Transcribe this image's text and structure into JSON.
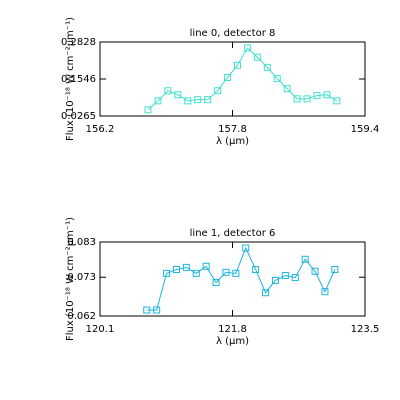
{
  "chart_data": [
    {
      "type": "line",
      "title": "line 0, detector 8",
      "xlabel": "λ (μm)",
      "ylabel": "Flux (10⁻¹⁸ W cm⁻²μm⁻¹)",
      "x": [
        156.78,
        156.9,
        157.02,
        157.14,
        157.26,
        157.38,
        157.5,
        157.62,
        157.74,
        157.86,
        157.98,
        158.1,
        158.22,
        158.34,
        158.46,
        158.58,
        158.7,
        158.82,
        158.94,
        159.06
      ],
      "series": [
        {
          "color": "#40e0d0",
          "values": [
            0.048,
            0.079,
            0.114,
            0.1,
            0.079,
            0.083,
            0.083,
            0.114,
            0.16,
            0.202,
            0.262,
            0.23,
            0.195,
            0.156,
            0.121,
            0.086,
            0.086,
            0.097,
            0.1,
            0.079
          ]
        }
      ],
      "xlim": [
        156.2,
        159.4
      ],
      "xticks": [
        156.2,
        157.8,
        159.4
      ],
      "ylim": [
        0.0265,
        0.2828
      ],
      "yticks": [
        0.0265,
        0.1546,
        0.2828
      ]
    },
    {
      "type": "line",
      "title": "line 1, detector 6",
      "xlabel": "λ (μm)",
      "ylabel": "Flux (10⁻¹⁸ W cm⁻²μm⁻¹)",
      "x": [
        120.7,
        120.827,
        120.954,
        121.081,
        121.208,
        121.335,
        121.462,
        121.589,
        121.716,
        121.843,
        121.97,
        122.097,
        122.224,
        122.351,
        122.478,
        122.605,
        122.732,
        122.859,
        122.986,
        123.113
      ],
      "series": [
        {
          "color": "#1cb5e0",
          "values": [
            0.0637,
            0.0637,
            0.0741,
            0.0752,
            0.0758,
            0.0741,
            0.0761,
            0.0715,
            0.0744,
            0.0741,
            0.0813,
            0.0752,
            0.0686,
            0.0721,
            0.0735,
            0.0729,
            0.0781,
            0.0747,
            0.0689,
            0.0752
          ]
        }
      ],
      "xlim": [
        120.1,
        123.5
      ],
      "xticks": [
        120.1,
        121.8,
        123.5
      ],
      "ylim": [
        0.062,
        0.083
      ],
      "yticks": [
        0.062,
        0.073,
        0.083
      ]
    }
  ]
}
